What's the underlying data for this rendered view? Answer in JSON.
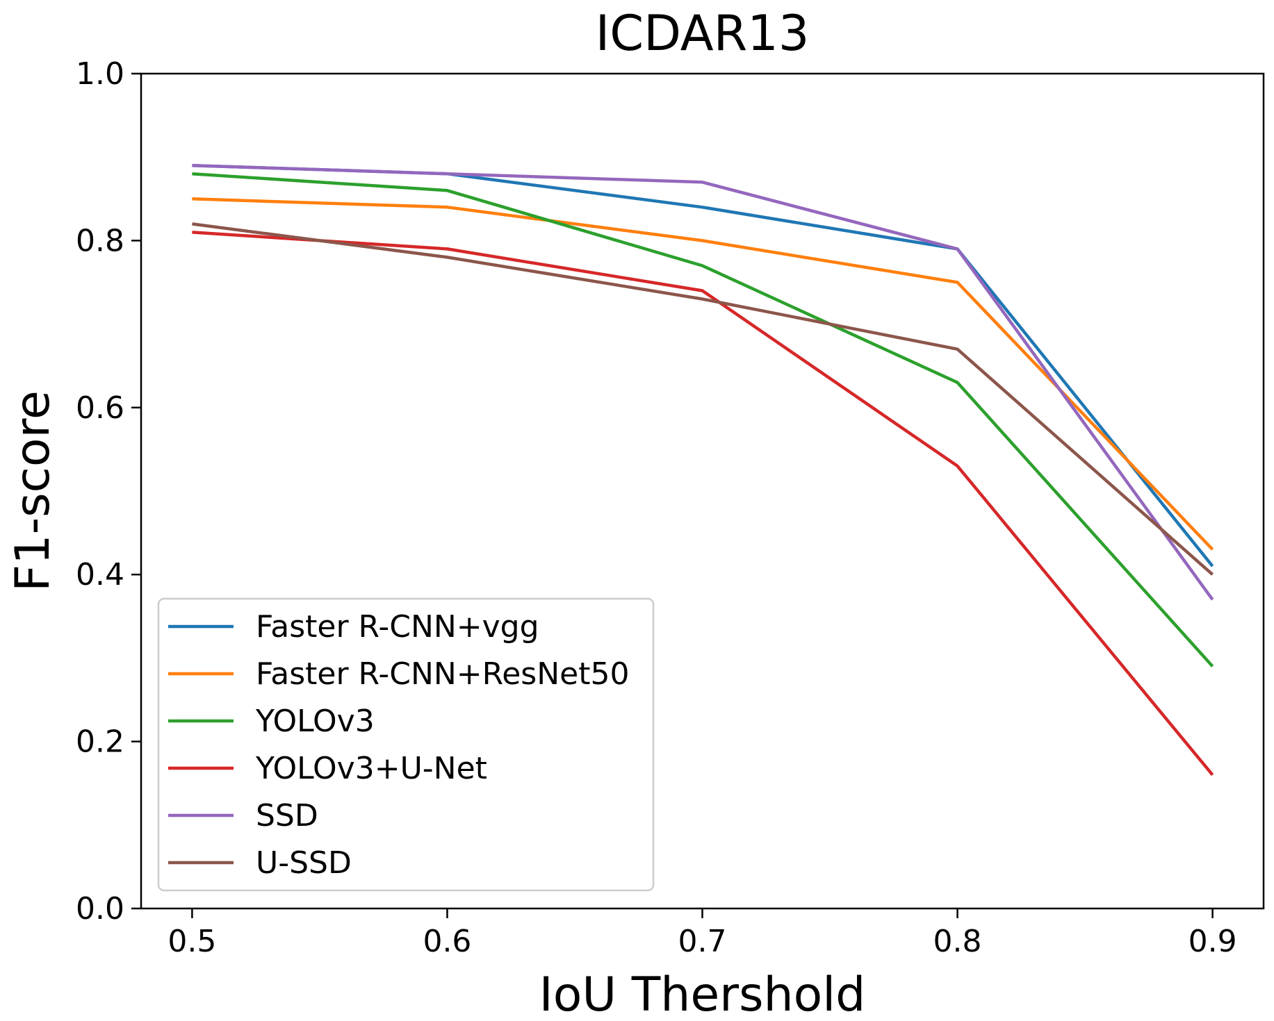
{
  "chart_data": {
    "type": "line",
    "title": "ICDAR13",
    "xlabel": "IoU Thershold",
    "ylabel": "F1-score",
    "x": [
      0.5,
      0.6,
      0.7,
      0.8,
      0.9
    ],
    "xlim": [
      0.48,
      0.92
    ],
    "ylim": [
      0.0,
      1.0
    ],
    "xticks": [
      "0.5",
      "0.6",
      "0.7",
      "0.8",
      "0.9"
    ],
    "yticks": [
      "0.0",
      "0.2",
      "0.4",
      "0.6",
      "0.8",
      "1.0"
    ],
    "grid": false,
    "legend_position": "lower-left",
    "series": [
      {
        "name": "Faster R-CNN+vgg",
        "color": "#1f77b4",
        "values": [
          0.89,
          0.88,
          0.84,
          0.79,
          0.41
        ]
      },
      {
        "name": "Faster R-CNN+ResNet50",
        "color": "#ff7f0e",
        "values": [
          0.85,
          0.84,
          0.8,
          0.75,
          0.43
        ]
      },
      {
        "name": "YOLOv3",
        "color": "#2ca02c",
        "values": [
          0.88,
          0.86,
          0.77,
          0.63,
          0.29
        ]
      },
      {
        "name": "YOLOv3+U-Net",
        "color": "#d62728",
        "values": [
          0.81,
          0.79,
          0.74,
          0.53,
          0.16
        ]
      },
      {
        "name": "SSD",
        "color": "#9467bd",
        "values": [
          0.89,
          0.88,
          0.87,
          0.79,
          0.37
        ]
      },
      {
        "name": "U-SSD",
        "color": "#8c564b",
        "values": [
          0.82,
          0.78,
          0.73,
          0.67,
          0.4
        ]
      }
    ]
  }
}
